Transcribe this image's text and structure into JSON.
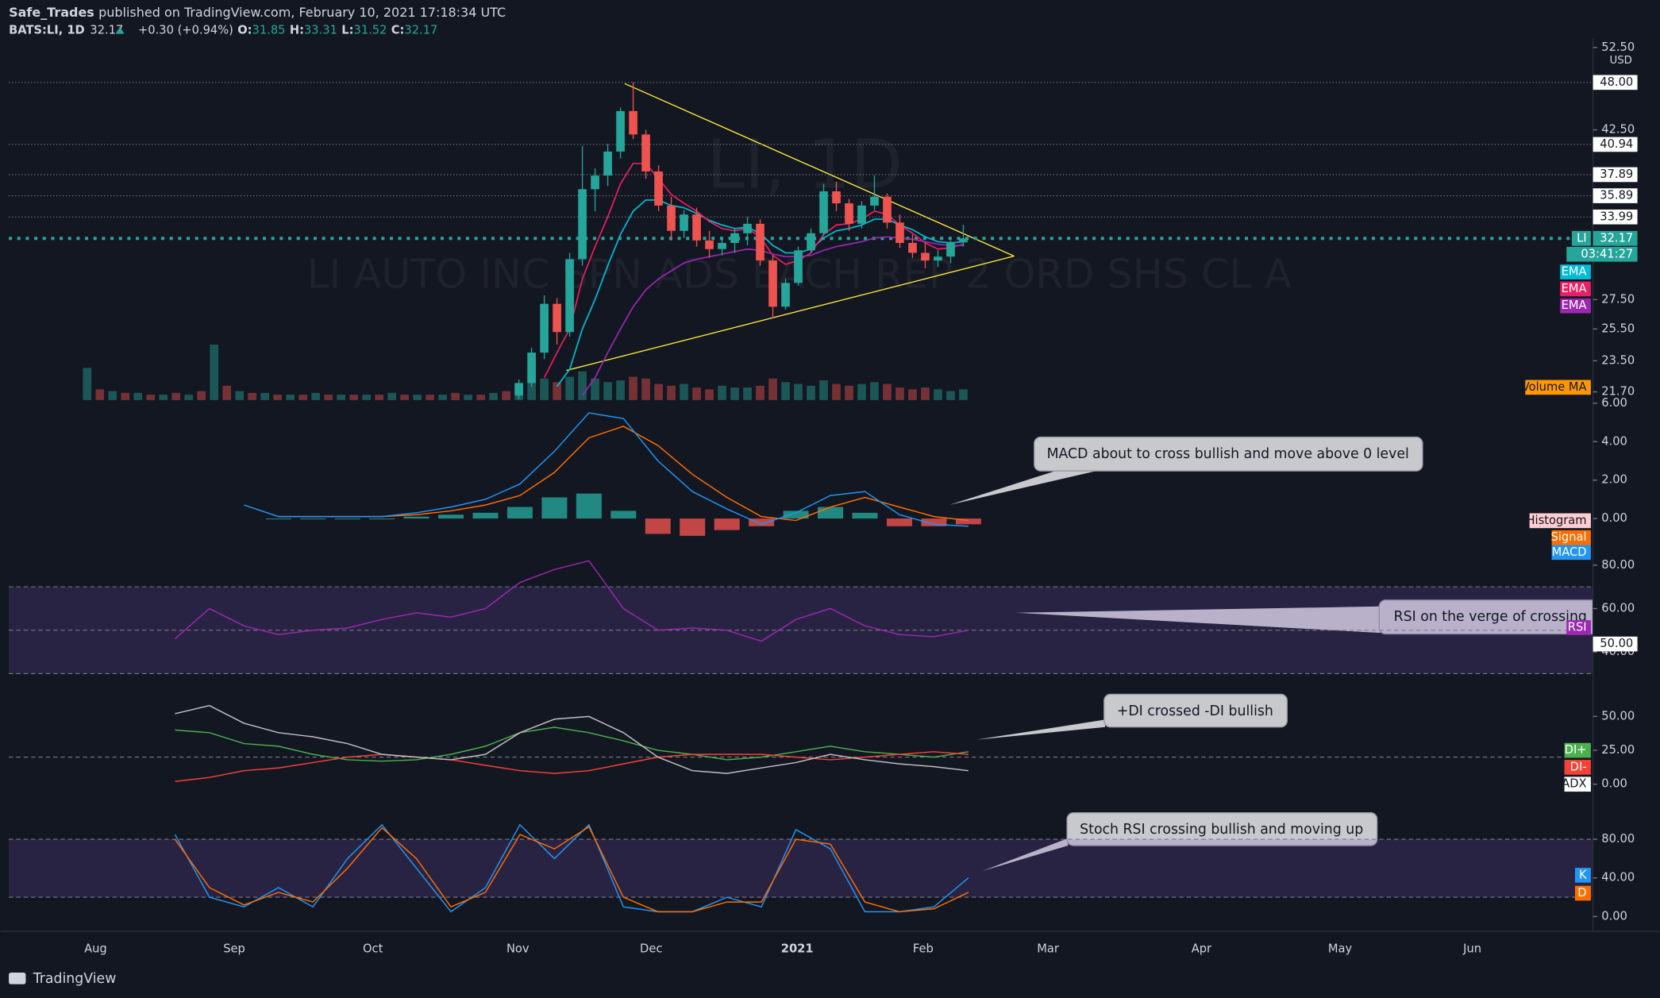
{
  "header": {
    "author": "Safe_Trades",
    "published": "published on TradingView.com, February 10, 2021 17:18:34 UTC",
    "symbol": "BATS:LI, 1D",
    "last": "32.17",
    "change": "+0.30 (+0.94%)",
    "ohlc": [
      {
        "key": "O:",
        "value": "31.85"
      },
      {
        "key": "H:",
        "value": "33.31"
      },
      {
        "key": "L:",
        "value": "31.52"
      },
      {
        "key": "C:",
        "value": "32.17"
      }
    ]
  },
  "watermark": {
    "symbol": "LI, 1D",
    "description": "LI AUTO INC SPN ADS EACH REP 2 ORD SHS CL A"
  },
  "price": {
    "currency": "USD",
    "log_scale": true,
    "ylim": [
      21.25,
      53.2
    ],
    "yticks": [
      {
        "value": 52.5,
        "label": "52.50"
      },
      {
        "value": 42.5,
        "label": "42.50"
      },
      {
        "value": 27.5,
        "label": "27.50"
      },
      {
        "value": 25.5,
        "label": "25.50"
      },
      {
        "value": 23.5,
        "label": "23.50"
      },
      {
        "value": 21.7,
        "label": "21.70"
      }
    ],
    "levels": [
      {
        "value": 48,
        "label": "48.00"
      },
      {
        "value": 40.94,
        "label": "40.94"
      },
      {
        "value": 37.89,
        "label": "37.89"
      },
      {
        "value": 35.89,
        "label": "35.89"
      },
      {
        "value": 33.99,
        "label": "33.99"
      }
    ],
    "last": {
      "tag": "LI",
      "value": 32.17,
      "label": "32.17",
      "countdown": "03:41:27"
    },
    "up_color": "#26a69a",
    "down_color": "#ef5350",
    "candles": {
      "open": [
        21.5,
        22.2,
        24,
        27.2,
        25.3,
        30.5,
        36.5,
        37.8,
        40.2,
        44.6,
        42,
        38.2,
        35,
        32.8,
        34.2,
        32,
        31.3,
        31.8,
        32.6,
        33.4,
        30.4,
        27,
        28.7,
        31.2,
        32.6,
        36.3,
        35.2,
        33.4,
        35,
        35.8,
        33.5,
        31.8,
        31,
        30.4,
        30.7,
        31.85
      ],
      "high": [
        22.4,
        24.3,
        27.8,
        27.6,
        31,
        40.8,
        38.5,
        41,
        45,
        48,
        42.5,
        38.8,
        35.8,
        34.6,
        34.8,
        32.8,
        32.3,
        33,
        34,
        33.8,
        30.8,
        29,
        31.5,
        33,
        37,
        37.2,
        35.6,
        35.4,
        37.8,
        36.1,
        34.2,
        32.5,
        31.8,
        31.2,
        32,
        33.31
      ],
      "low": [
        21.3,
        22,
        23.6,
        24.5,
        25,
        30,
        34.5,
        36.8,
        39.5,
        41.5,
        37.5,
        34.5,
        32,
        32.2,
        31.5,
        30.6,
        30.8,
        31,
        31.6,
        30,
        26.2,
        26.8,
        28.5,
        31,
        32.4,
        34.5,
        32.8,
        33,
        34.6,
        33,
        31.4,
        30.6,
        29.8,
        29.9,
        30.2,
        31.52
      ],
      "close": [
        22.2,
        24,
        27.2,
        25.3,
        30.5,
        36.5,
        37.8,
        40.2,
        44.6,
        42,
        38.2,
        35,
        32.8,
        34.2,
        32,
        31.3,
        31.8,
        32.6,
        33.4,
        30.4,
        27,
        28.7,
        31.2,
        32.6,
        36.3,
        35.2,
        33.4,
        35,
        35.8,
        33.5,
        31.8,
        31,
        30.4,
        30.7,
        31.85,
        32.17
      ]
    },
    "ema": [
      {
        "name": "EMA",
        "color": "#00bcd4",
        "values": [
          null,
          null,
          null,
          22,
          23,
          25.5,
          27.5,
          30,
          32.5,
          34.5,
          35.5,
          35.5,
          35,
          34.8,
          34.3,
          33.7,
          33.3,
          33,
          33.1,
          32.6,
          31.6,
          31,
          31,
          31.3,
          32.2,
          32.8,
          33,
          33.3,
          33.8,
          33.8,
          33.3,
          32.9,
          32.3,
          31.9,
          31.8,
          31.9
        ]
      },
      {
        "name": "EMA",
        "color": "#e91e63",
        "values": [
          null,
          null,
          22.5,
          24,
          25.5,
          29,
          31.5,
          34,
          37,
          39,
          39,
          37.5,
          36,
          35.2,
          34.5,
          33.6,
          33,
          32.8,
          33,
          32.3,
          30.8,
          30.1,
          30.4,
          31,
          32.5,
          33.3,
          33.4,
          33.8,
          34.5,
          34.2,
          33.3,
          32.6,
          31.8,
          31.3,
          31.4,
          31.7
        ]
      },
      {
        "name": "EMA",
        "color": "#9c27b0",
        "values": [
          null,
          null,
          null,
          null,
          null,
          21.5,
          22.5,
          24,
          25.5,
          27,
          28.2,
          29,
          29.6,
          30.2,
          30.5,
          30.7,
          30.9,
          31.1,
          31.3,
          31.2,
          30.9,
          30.7,
          30.7,
          30.8,
          31.2,
          31.5,
          31.7,
          31.9,
          32.2,
          32.3,
          32.2,
          32.1,
          31.9,
          31.7,
          31.6,
          31.6
        ]
      }
    ]
  },
  "volume": {
    "name": "Volume MA",
    "color": "#ff9800",
    "ylim": [
      0,
      200
    ],
    "values": [
      18,
      6,
      5,
      4,
      4,
      3,
      3,
      4,
      3,
      5,
      31,
      8,
      5,
      4,
      4,
      3,
      3,
      3,
      4,
      3,
      3,
      3,
      3,
      3,
      4,
      3,
      3,
      3,
      3,
      4,
      3,
      3,
      4,
      5,
      8,
      14,
      12,
      10,
      13,
      16,
      12,
      10,
      11,
      13,
      12,
      9,
      8,
      9,
      7,
      6,
      8,
      7,
      7,
      8,
      12,
      10,
      9,
      8,
      11,
      9,
      8,
      9,
      10,
      9,
      7,
      6,
      7,
      6,
      5,
      6
    ]
  },
  "macd": {
    "ylim": [
      -1.6,
      6
    ],
    "yticks": [
      {
        "value": 6,
        "label": "6.00"
      },
      {
        "value": 4,
        "label": "4.00"
      },
      {
        "value": 2,
        "label": "2.00"
      },
      {
        "value": 0,
        "label": "0.00"
      }
    ],
    "histogram": {
      "name": "Histogram",
      "color": "#ffcdd2",
      "up_color": "#26a69a",
      "down_color": "#ef5350",
      "values": [
        null,
        null,
        null,
        0,
        0,
        0,
        0,
        0.1,
        0.2,
        0.3,
        0.6,
        1.1,
        1.3,
        0.4,
        -0.8,
        -0.9,
        -0.6,
        -0.4,
        0.4,
        0.6,
        0.3,
        -0.4,
        -0.4,
        -0.3
      ]
    },
    "series": [
      {
        "name": "Signal",
        "color": "#ff6d00",
        "values": [
          null,
          null,
          null,
          0.1,
          0.1,
          0.1,
          0.1,
          0.2,
          0.4,
          0.7,
          1.2,
          2.4,
          4.2,
          4.8,
          3.8,
          2.3,
          1.1,
          0.1,
          -0.1,
          0.6,
          1.1,
          0.6,
          0.1,
          -0.1
        ]
      },
      {
        "name": "MACD",
        "color": "#2196f3",
        "values": [
          null,
          null,
          0.7,
          0.1,
          0.1,
          0.1,
          0.1,
          0.3,
          0.6,
          1.0,
          1.8,
          3.5,
          5.5,
          5.2,
          3.0,
          1.4,
          0.5,
          -0.3,
          0.3,
          1.2,
          1.4,
          0.2,
          -0.3,
          -0.4
        ]
      }
    ],
    "annotation": "MACD about to cross bullish and move above 0 level"
  },
  "rsi": {
    "ylim": [
      25,
      84
    ],
    "yticks": [
      {
        "value": 80,
        "label": "80.00"
      },
      {
        "value": 60,
        "label": "60.00"
      },
      {
        "value": 40,
        "label": "40.00"
      }
    ],
    "band": [
      30,
      70
    ],
    "midline": 50,
    "band_color": "#7e57c2",
    "series": [
      {
        "name": "RSI",
        "color": "#9c27b0",
        "values": [
          46,
          60,
          52,
          48,
          50,
          51,
          55,
          58,
          56,
          60,
          72,
          78,
          82,
          60,
          50,
          51,
          50,
          45,
          55,
          60,
          52,
          48,
          47,
          50
        ]
      }
    ],
    "value_label": {
      "value": 50,
      "label": "50.00"
    },
    "annotation": "RSI on the verge of crossing"
  },
  "dmi": {
    "ylim": [
      -2,
      62
    ],
    "yticks": [
      {
        "value": 50,
        "label": "50.00"
      },
      {
        "value": 25,
        "label": "25.00"
      },
      {
        "value": 0,
        "label": "0.00"
      }
    ],
    "level": 20,
    "series": [
      {
        "name": "DI+",
        "color": "#4caf50",
        "values": [
          40,
          38,
          30,
          28,
          22,
          18,
          17,
          18,
          22,
          28,
          38,
          42,
          38,
          32,
          25,
          22,
          18,
          20,
          24,
          28,
          24,
          22,
          20,
          24
        ]
      },
      {
        "name": "DI-",
        "color": "#f44336",
        "values": [
          2,
          5,
          10,
          12,
          16,
          20,
          22,
          20,
          18,
          14,
          10,
          8,
          10,
          15,
          20,
          22,
          22,
          22,
          20,
          18,
          20,
          22,
          24,
          22
        ]
      },
      {
        "name": "ADX",
        "color": "#c0c0c0",
        "values": [
          52,
          58,
          45,
          38,
          35,
          30,
          22,
          20,
          18,
          22,
          38,
          48,
          50,
          38,
          20,
          10,
          8,
          12,
          16,
          22,
          18,
          15,
          13,
          10
        ]
      }
    ],
    "annotation": "+DI crossed -DI bullish"
  },
  "stoch": {
    "ylim": [
      -5,
      105
    ],
    "yticks": [
      {
        "value": 80,
        "label": "80.00"
      },
      {
        "value": 40,
        "label": "40.00"
      },
      {
        "value": 0,
        "label": "0.00"
      }
    ],
    "band": [
      20,
      80
    ],
    "band_color": "#7e57c2",
    "series": [
      {
        "name": "K",
        "color": "#2196f3",
        "values": [
          85,
          20,
          10,
          30,
          10,
          60,
          95,
          50,
          5,
          30,
          95,
          60,
          95,
          10,
          5,
          5,
          20,
          10,
          90,
          70,
          5,
          5,
          10,
          40
        ]
      },
      {
        "name": "D",
        "color": "#ff6d00",
        "values": [
          80,
          30,
          12,
          25,
          15,
          50,
          92,
          60,
          10,
          25,
          85,
          70,
          93,
          20,
          5,
          5,
          15,
          15,
          80,
          75,
          15,
          5,
          8,
          25
        ]
      }
    ],
    "annotation": "Stoch RSI crossing bullish and moving up"
  },
  "time_axis": [
    "Aug",
    "Sep",
    "Oct",
    "Nov",
    "Dec",
    "2021",
    "Feb",
    "Mar",
    "Apr",
    "May",
    "Jun"
  ],
  "footer": "TradingView"
}
